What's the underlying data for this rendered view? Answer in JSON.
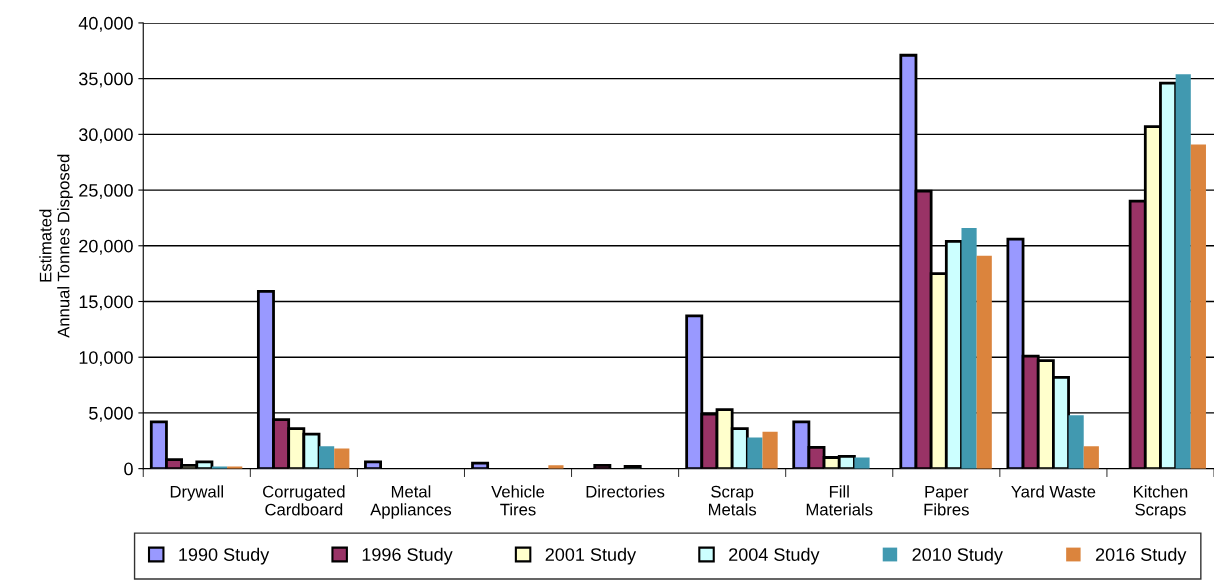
{
  "chart_data": {
    "type": "bar",
    "ylabel": "Estimated\nAnnual Tonnes Disposed",
    "categories": [
      "Drywall",
      "Corrugated\nCardboard",
      "Metal\nAppliances",
      "Vehicle\nTires",
      "Directories",
      "Scrap\nMetals",
      "Fill\nMaterials",
      "Paper\nFibres",
      "Yard Waste",
      "Kitchen\nScraps"
    ],
    "series": [
      {
        "name": "1990 Study",
        "color": "#9999ff",
        "values": [
          4200,
          15900,
          600,
          500,
          null,
          13700,
          4200,
          37100,
          20600,
          null
        ]
      },
      {
        "name": "1996 Study",
        "color": "#993366",
        "values": [
          800,
          4400,
          null,
          null,
          300,
          4900,
          1900,
          24900,
          10100,
          24000
        ]
      },
      {
        "name": "2001 Study",
        "color": "#ffffcc",
        "values": [
          300,
          3600,
          null,
          null,
          null,
          5300,
          1000,
          17500,
          9700,
          30700
        ]
      },
      {
        "name": "2004 Study",
        "color": "#ccffff",
        "values": [
          600,
          3100,
          null,
          null,
          200,
          3600,
          1100,
          20400,
          8200,
          34600
        ]
      },
      {
        "name": "2010 Study",
        "color": "#4199b0",
        "values": [
          200,
          2000,
          null,
          null,
          null,
          2800,
          1000,
          21600,
          4800,
          35400
        ]
      },
      {
        "name": "2016 Study",
        "color": "#db843d",
        "values": [
          200,
          1800,
          null,
          300,
          null,
          3300,
          null,
          19100,
          2000,
          29100
        ]
      }
    ],
    "ylim": [
      0,
      40000
    ],
    "yticks": [
      0,
      {
        "value": 5000,
        "label": "5,000"
      },
      {
        "value": 10000,
        "label": "10,000"
      },
      {
        "value": 15000,
        "label": "15,000"
      },
      {
        "value": 20000,
        "label": "20,000"
      },
      {
        "value": 25000,
        "label": "25,000"
      },
      {
        "value": 30000,
        "label": "30,000"
      },
      {
        "value": 35000,
        "label": "35,000"
      },
      {
        "value": 40000,
        "label": "40,000"
      }
    ],
    "grid": "y",
    "legend": "bottom"
  }
}
